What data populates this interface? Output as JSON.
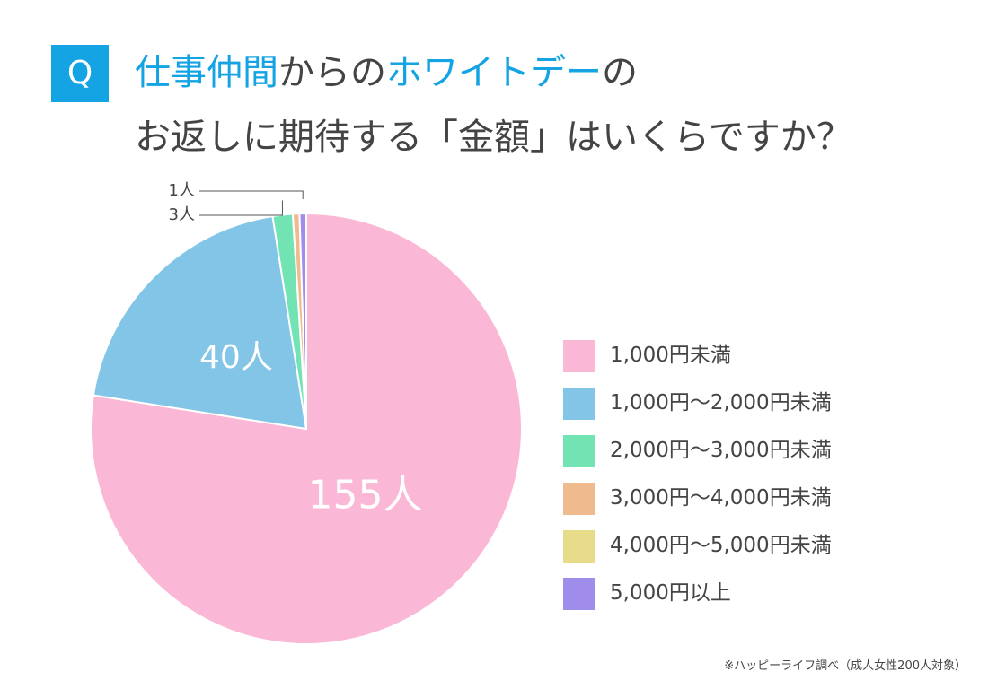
{
  "badge": "Q",
  "title_line1": [
    {
      "text": "仕事仲間",
      "hl": true
    },
    {
      "text": "からの",
      "hl": false
    },
    {
      "text": "ホワイトデー",
      "hl": true
    },
    {
      "text": "の",
      "hl": false
    }
  ],
  "title_line2": "お返しに期待する「金額」はいくらですか？",
  "source": "※ハッピーライフ調べ（成人女性200人対象）",
  "colors": {
    "accent": "#14a3e3",
    "text": "#444444"
  },
  "chart_data": {
    "type": "pie",
    "unit": "人",
    "start_angle_deg": 0,
    "direction": "clockwise",
    "legend_position": "right",
    "slices": [
      {
        "label": "1,000円未満",
        "value": 155,
        "display": "155人",
        "color": "#fbb7d6",
        "label_mode": "inside"
      },
      {
        "label": "1,000円～2,000円未満",
        "value": 40,
        "display": "40人",
        "color": "#82c5e7",
        "label_mode": "inside"
      },
      {
        "label": "2,000円～3,000円未満",
        "value": 3,
        "display": "3人",
        "color": "#72e3b3",
        "label_mode": "callout"
      },
      {
        "label": "3,000円～4,000円未満",
        "value": 1,
        "display": "",
        "color": "#efbb8e",
        "label_mode": "none"
      },
      {
        "label": "4,000円～5,000円未満",
        "value": 0,
        "display": "",
        "color": "#e6dc8a",
        "label_mode": "none"
      },
      {
        "label": "5,000円以上",
        "value": 1,
        "display": "1人",
        "color": "#a08deb",
        "label_mode": "callout"
      }
    ]
  }
}
